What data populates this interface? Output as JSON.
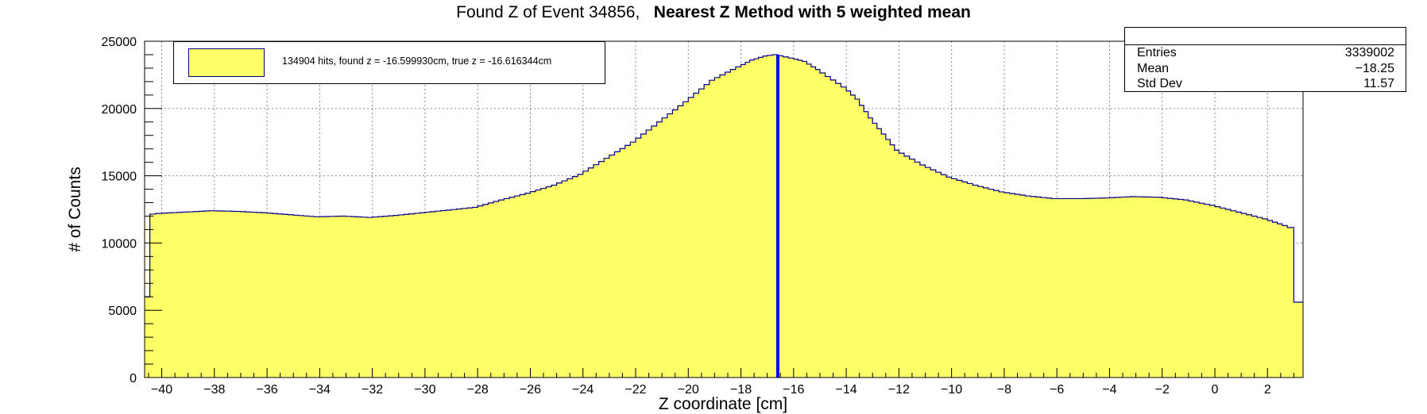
{
  "chart_data": {
    "type": "histogram",
    "title": "Found Z of Event 34856,",
    "title_bold": "Nearest Z Method with 5 weighted mean",
    "xlabel": "Z coordinate [cm]",
    "ylabel": "# of Counts",
    "xlim": [
      -40.65,
      3.35
    ],
    "ylim": [
      0,
      25000
    ],
    "x_ticks": [
      -40,
      -38,
      -36,
      -34,
      -32,
      -30,
      -28,
      -26,
      -24,
      -22,
      -20,
      -18,
      -16,
      -14,
      -12,
      -10,
      -8,
      -6,
      -4,
      -2,
      0,
      2
    ],
    "y_ticks": [
      0,
      5000,
      10000,
      15000,
      20000,
      25000
    ],
    "grid": true,
    "fill_color": "#ffff66",
    "line_color": "#00008b",
    "marker_color": "#0000ff",
    "found_z_line": -16.6,
    "curve": [
      [
        -40.65,
        6000
      ],
      [
        -40.45,
        6000
      ],
      [
        -40.45,
        12100
      ],
      [
        -40.0,
        12200
      ],
      [
        -39.0,
        12300
      ],
      [
        -38.0,
        12400
      ],
      [
        -37.0,
        12350
      ],
      [
        -36.0,
        12250
      ],
      [
        -35.0,
        12100
      ],
      [
        -34.0,
        11950
      ],
      [
        -33.0,
        12000
      ],
      [
        -32.0,
        11900
      ],
      [
        -31.0,
        12050
      ],
      [
        -30.0,
        12250
      ],
      [
        -29.0,
        12450
      ],
      [
        -28.0,
        12650
      ],
      [
        -27.0,
        13200
      ],
      [
        -26.0,
        13700
      ],
      [
        -25.0,
        14300
      ],
      [
        -24.0,
        15100
      ],
      [
        -23.0,
        16300
      ],
      [
        -22.0,
        17500
      ],
      [
        -21.0,
        19000
      ],
      [
        -20.0,
        20500
      ],
      [
        -19.0,
        22100
      ],
      [
        -18.0,
        23100
      ],
      [
        -17.5,
        23600
      ],
      [
        -17.0,
        23900
      ],
      [
        -16.6,
        24000
      ],
      [
        -16.0,
        23750
      ],
      [
        -15.5,
        23500
      ],
      [
        -15.0,
        22900
      ],
      [
        -14.0,
        21600
      ],
      [
        -13.5,
        20700
      ],
      [
        -13.0,
        19300
      ],
      [
        -12.5,
        18100
      ],
      [
        -12.0,
        16900
      ],
      [
        -11.0,
        15800
      ],
      [
        -10.0,
        14900
      ],
      [
        -9.0,
        14300
      ],
      [
        -8.0,
        13800
      ],
      [
        -7.0,
        13500
      ],
      [
        -6.0,
        13300
      ],
      [
        -5.0,
        13300
      ],
      [
        -4.0,
        13350
      ],
      [
        -3.0,
        13450
      ],
      [
        -2.0,
        13400
      ],
      [
        -1.0,
        13200
      ],
      [
        0.0,
        12800
      ],
      [
        1.0,
        12300
      ],
      [
        2.0,
        11800
      ],
      [
        2.75,
        11300
      ],
      [
        3.0,
        11150
      ],
      [
        3.0,
        5600
      ],
      [
        3.35,
        5600
      ]
    ]
  },
  "legend": {
    "label": "134904 hits, found z = -16.599930cm, true z = -16.616344cm"
  },
  "stats": {
    "entries_label": "Entries",
    "entries_value": "3339002",
    "mean_label": "Mean",
    "mean_value": "−18.25",
    "stddev_label": "Std Dev",
    "stddev_value": "11.57"
  }
}
